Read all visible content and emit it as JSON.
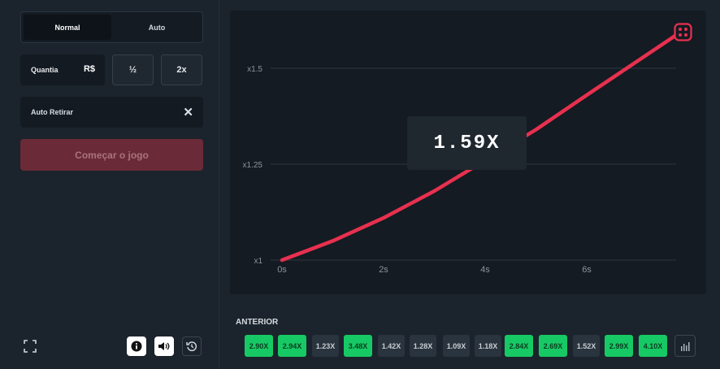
{
  "bet_panel": {
    "tabs": [
      {
        "label": "Normal"
      },
      {
        "label": "Auto"
      }
    ],
    "amount_label": "Quantia",
    "currency": "R$",
    "half_label": "½",
    "double_label": "2x",
    "auto_cashout_label": "Auto Retirar",
    "start_button_label": "Começar o jogo"
  },
  "chart_data": {
    "type": "line",
    "x_ticks": [
      "0s",
      "2s",
      "4s",
      "6s"
    ],
    "y_ticks": [
      "x1",
      "x1.25",
      "x1.5"
    ],
    "series": [
      {
        "x": [
          0,
          1,
          2,
          3,
          4,
          5,
          6,
          7.8
        ],
        "y": [
          1.0,
          1.05,
          1.11,
          1.18,
          1.26,
          1.34,
          1.43,
          1.59
        ]
      }
    ],
    "xlim": [
      0,
      8
    ],
    "ylim": [
      1.0,
      1.6
    ],
    "color": "#e8304f"
  },
  "game": {
    "multiplier": "1.59X"
  },
  "history": {
    "title": "ANTERIOR",
    "items": [
      {
        "value": "2.90X",
        "win": true
      },
      {
        "value": "2.94X",
        "win": true
      },
      {
        "value": "1.23X",
        "win": false
      },
      {
        "value": "3.48X",
        "win": true
      },
      {
        "value": "1.42X",
        "win": false
      },
      {
        "value": "1.28X",
        "win": false
      },
      {
        "value": "1.09X",
        "win": false
      },
      {
        "value": "1.18X",
        "win": false
      },
      {
        "value": "2.84X",
        "win": true
      },
      {
        "value": "2.69X",
        "win": true
      },
      {
        "value": "1.52X",
        "win": false
      },
      {
        "value": "2.99X",
        "win": true
      },
      {
        "value": "4.10X",
        "win": true
      }
    ]
  },
  "icons": [
    "fullscreen-icon",
    "info-icon",
    "sound-icon",
    "history-icon",
    "stats-icon",
    "dice-icon"
  ]
}
